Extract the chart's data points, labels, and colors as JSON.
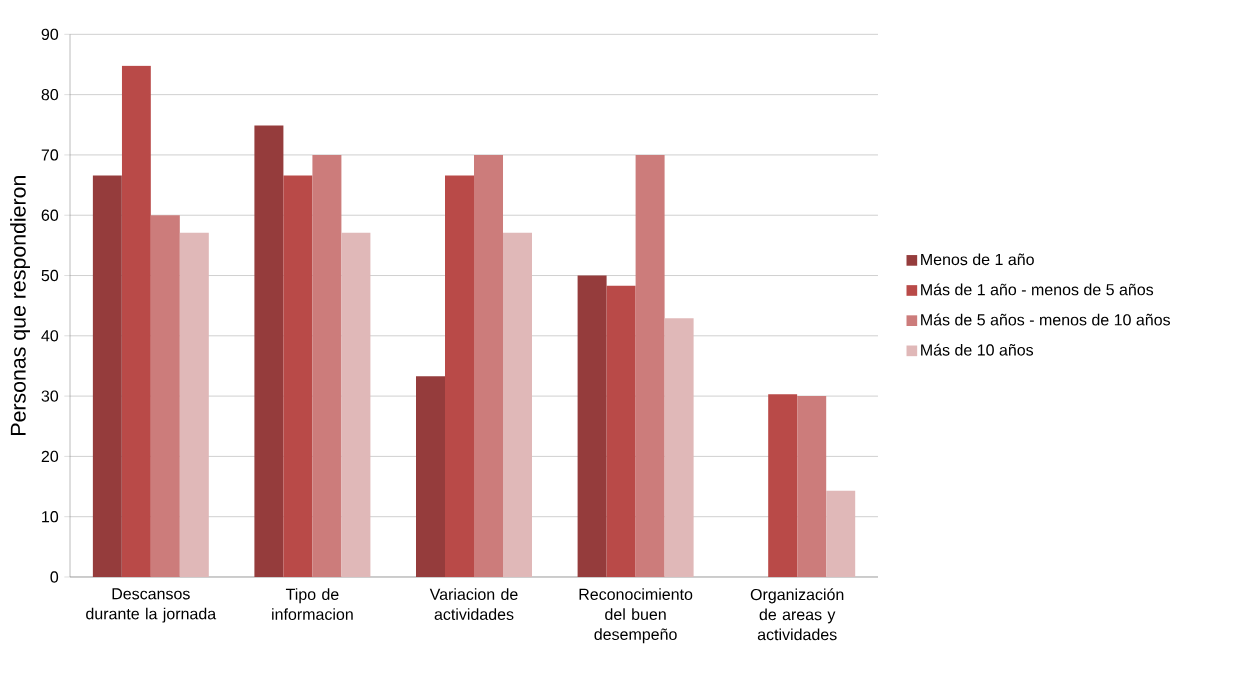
{
  "chart_data": {
    "type": "bar",
    "ylabel": "Personas que respondieron",
    "categories": [
      "Descansos durante la jornada",
      "Tipo de informacion",
      "Variacion de actividades",
      "Reconocimiento del buen desempeño",
      "Organización de areas y actividades"
    ],
    "series": [
      {
        "name": "Menos de 1 año",
        "color": "#953c3c",
        "values": [
          66.6,
          74.9,
          33.3,
          50,
          null
        ]
      },
      {
        "name": "Más de 1 año - menos de 5 años",
        "color": "#b94a48",
        "values": [
          84.8,
          66.6,
          66.6,
          48.3,
          30.3
        ]
      },
      {
        "name": "Más de 5 años - menos de 10 años",
        "color": "#cc7c7b",
        "values": [
          60,
          70,
          70,
          70,
          30
        ]
      },
      {
        "name": "Más de 10 años",
        "color": "#e0b8b8",
        "values": [
          57.1,
          57.1,
          57.1,
          42.9,
          14.3
        ]
      }
    ],
    "ylim": [
      0,
      90
    ],
    "yticks": [
      0,
      10,
      20,
      30,
      40,
      50,
      60,
      70,
      80,
      90
    ],
    "grid": "y",
    "legend": "right"
  }
}
